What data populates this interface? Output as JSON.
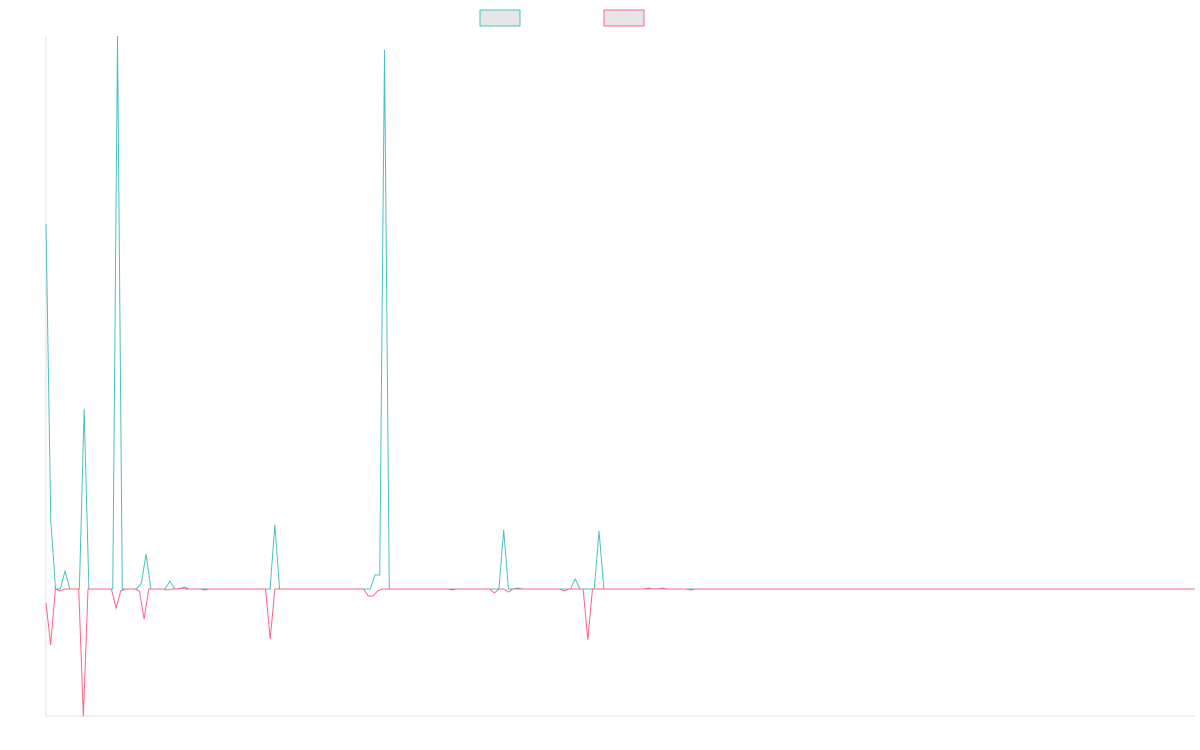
{
  "chart_data": {
    "type": "line",
    "legend": "top",
    "ylim": [
      -127,
      553
    ],
    "legend_fill": "#e6e6e6",
    "series": [
      {
        "color": "#4bc0c0",
        "values": [
          365,
          69,
          0,
          0,
          18,
          0,
          0,
          0,
          180,
          0,
          0,
          0,
          0,
          0,
          0,
          553,
          0,
          0,
          0,
          0,
          6,
          35,
          0,
          0,
          0,
          0,
          8,
          0,
          0,
          2,
          0,
          0,
          0,
          0,
          0,
          0,
          0,
          0,
          0,
          0,
          0,
          0,
          0,
          0,
          0,
          0,
          0,
          0,
          64,
          0,
          0,
          0,
          0,
          0,
          0,
          0,
          0,
          0,
          0,
          0,
          0,
          0,
          0,
          0,
          0,
          0,
          0,
          0,
          0,
          14,
          14,
          539,
          0,
          0,
          0,
          0,
          0,
          0,
          0,
          0,
          0,
          0,
          0,
          0,
          0,
          0,
          0,
          0,
          0,
          0,
          0,
          0,
          0,
          0,
          0,
          0,
          59,
          0,
          0,
          1,
          0,
          0,
          0,
          0,
          0,
          0,
          0,
          0,
          0,
          0,
          0,
          10,
          0,
          0,
          0,
          0,
          58,
          0,
          0,
          0,
          0,
          0,
          0,
          0,
          0,
          0,
          0,
          0,
          0,
          0,
          0,
          0,
          0,
          0,
          0,
          0,
          0,
          0,
          0,
          0,
          0,
          0,
          0,
          0,
          0,
          0,
          0,
          0,
          0,
          0,
          0,
          0,
          0,
          0,
          0,
          0,
          0,
          0,
          0,
          0,
          0,
          0,
          0,
          0,
          0,
          0,
          0,
          0,
          0,
          0,
          0,
          0,
          0,
          0,
          0,
          0,
          0,
          0,
          0,
          0,
          0,
          0,
          0,
          0,
          0,
          0,
          0,
          0,
          0,
          0,
          0,
          0,
          0,
          0,
          0,
          0,
          0,
          0,
          0,
          0,
          0,
          0,
          0,
          0,
          0,
          0,
          0,
          0,
          0,
          0,
          0,
          0,
          0,
          0,
          0,
          0,
          0,
          0,
          0,
          0,
          0,
          0,
          0,
          0,
          0,
          0,
          0,
          0,
          0,
          0,
          0,
          0,
          0,
          0,
          0,
          0,
          0,
          0,
          0,
          0,
          0,
          0
        ]
      },
      {
        "color": "#ff6384",
        "values": [
          -14,
          -56,
          0,
          -2,
          0,
          0,
          0,
          0,
          -127,
          0,
          0,
          0,
          0,
          0,
          0,
          -19,
          -2,
          0,
          0,
          0,
          -2,
          -30,
          0,
          0,
          0,
          0,
          -1,
          0,
          0,
          1,
          0,
          0,
          0,
          0,
          -1,
          0,
          0,
          0,
          0,
          0,
          0,
          0,
          0,
          0,
          0,
          0,
          0,
          0,
          -50,
          0,
          0,
          0,
          0,
          0,
          0,
          0,
          0,
          0,
          0,
          0,
          0,
          0,
          0,
          0,
          0,
          0,
          0,
          0,
          0,
          -7,
          -7,
          -2,
          0,
          0,
          0,
          0,
          0,
          0,
          0,
          0,
          0,
          0,
          0,
          0,
          0,
          0,
          0,
          -1,
          0,
          0,
          0,
          0,
          0,
          0,
          0,
          0,
          -4,
          0,
          0,
          -3,
          0,
          0,
          0,
          0,
          0,
          0,
          0,
          0,
          0,
          0,
          0,
          -2,
          0,
          0,
          0,
          0,
          -51,
          0,
          0,
          0,
          0,
          0,
          0,
          0,
          0,
          0,
          0,
          0,
          0,
          1,
          0,
          0,
          1,
          0,
          0,
          0,
          0,
          0,
          -1,
          0,
          0,
          0,
          0,
          0,
          0,
          0,
          0,
          0,
          0,
          0,
          0,
          0,
          0,
          0,
          0,
          0,
          0,
          0,
          0,
          0,
          0,
          0,
          0,
          0,
          0,
          0,
          0,
          0,
          0,
          0,
          0,
          0,
          0,
          0,
          0,
          0,
          0,
          0,
          0,
          0,
          0,
          0,
          0,
          0,
          0,
          0,
          0,
          0,
          0,
          0,
          0,
          0,
          0,
          0,
          0,
          0,
          0,
          0,
          0,
          0,
          0,
          0,
          0,
          0,
          0,
          0,
          0,
          0,
          0,
          0,
          0,
          0,
          0,
          0,
          0,
          0,
          0,
          0,
          0,
          0,
          0,
          0,
          0,
          0,
          0,
          0,
          0,
          0,
          0,
          0,
          0,
          0,
          0,
          0,
          0,
          0,
          0,
          0,
          0,
          0,
          0,
          0,
          0,
          0,
          0,
          0,
          0
        ]
      }
    ]
  }
}
